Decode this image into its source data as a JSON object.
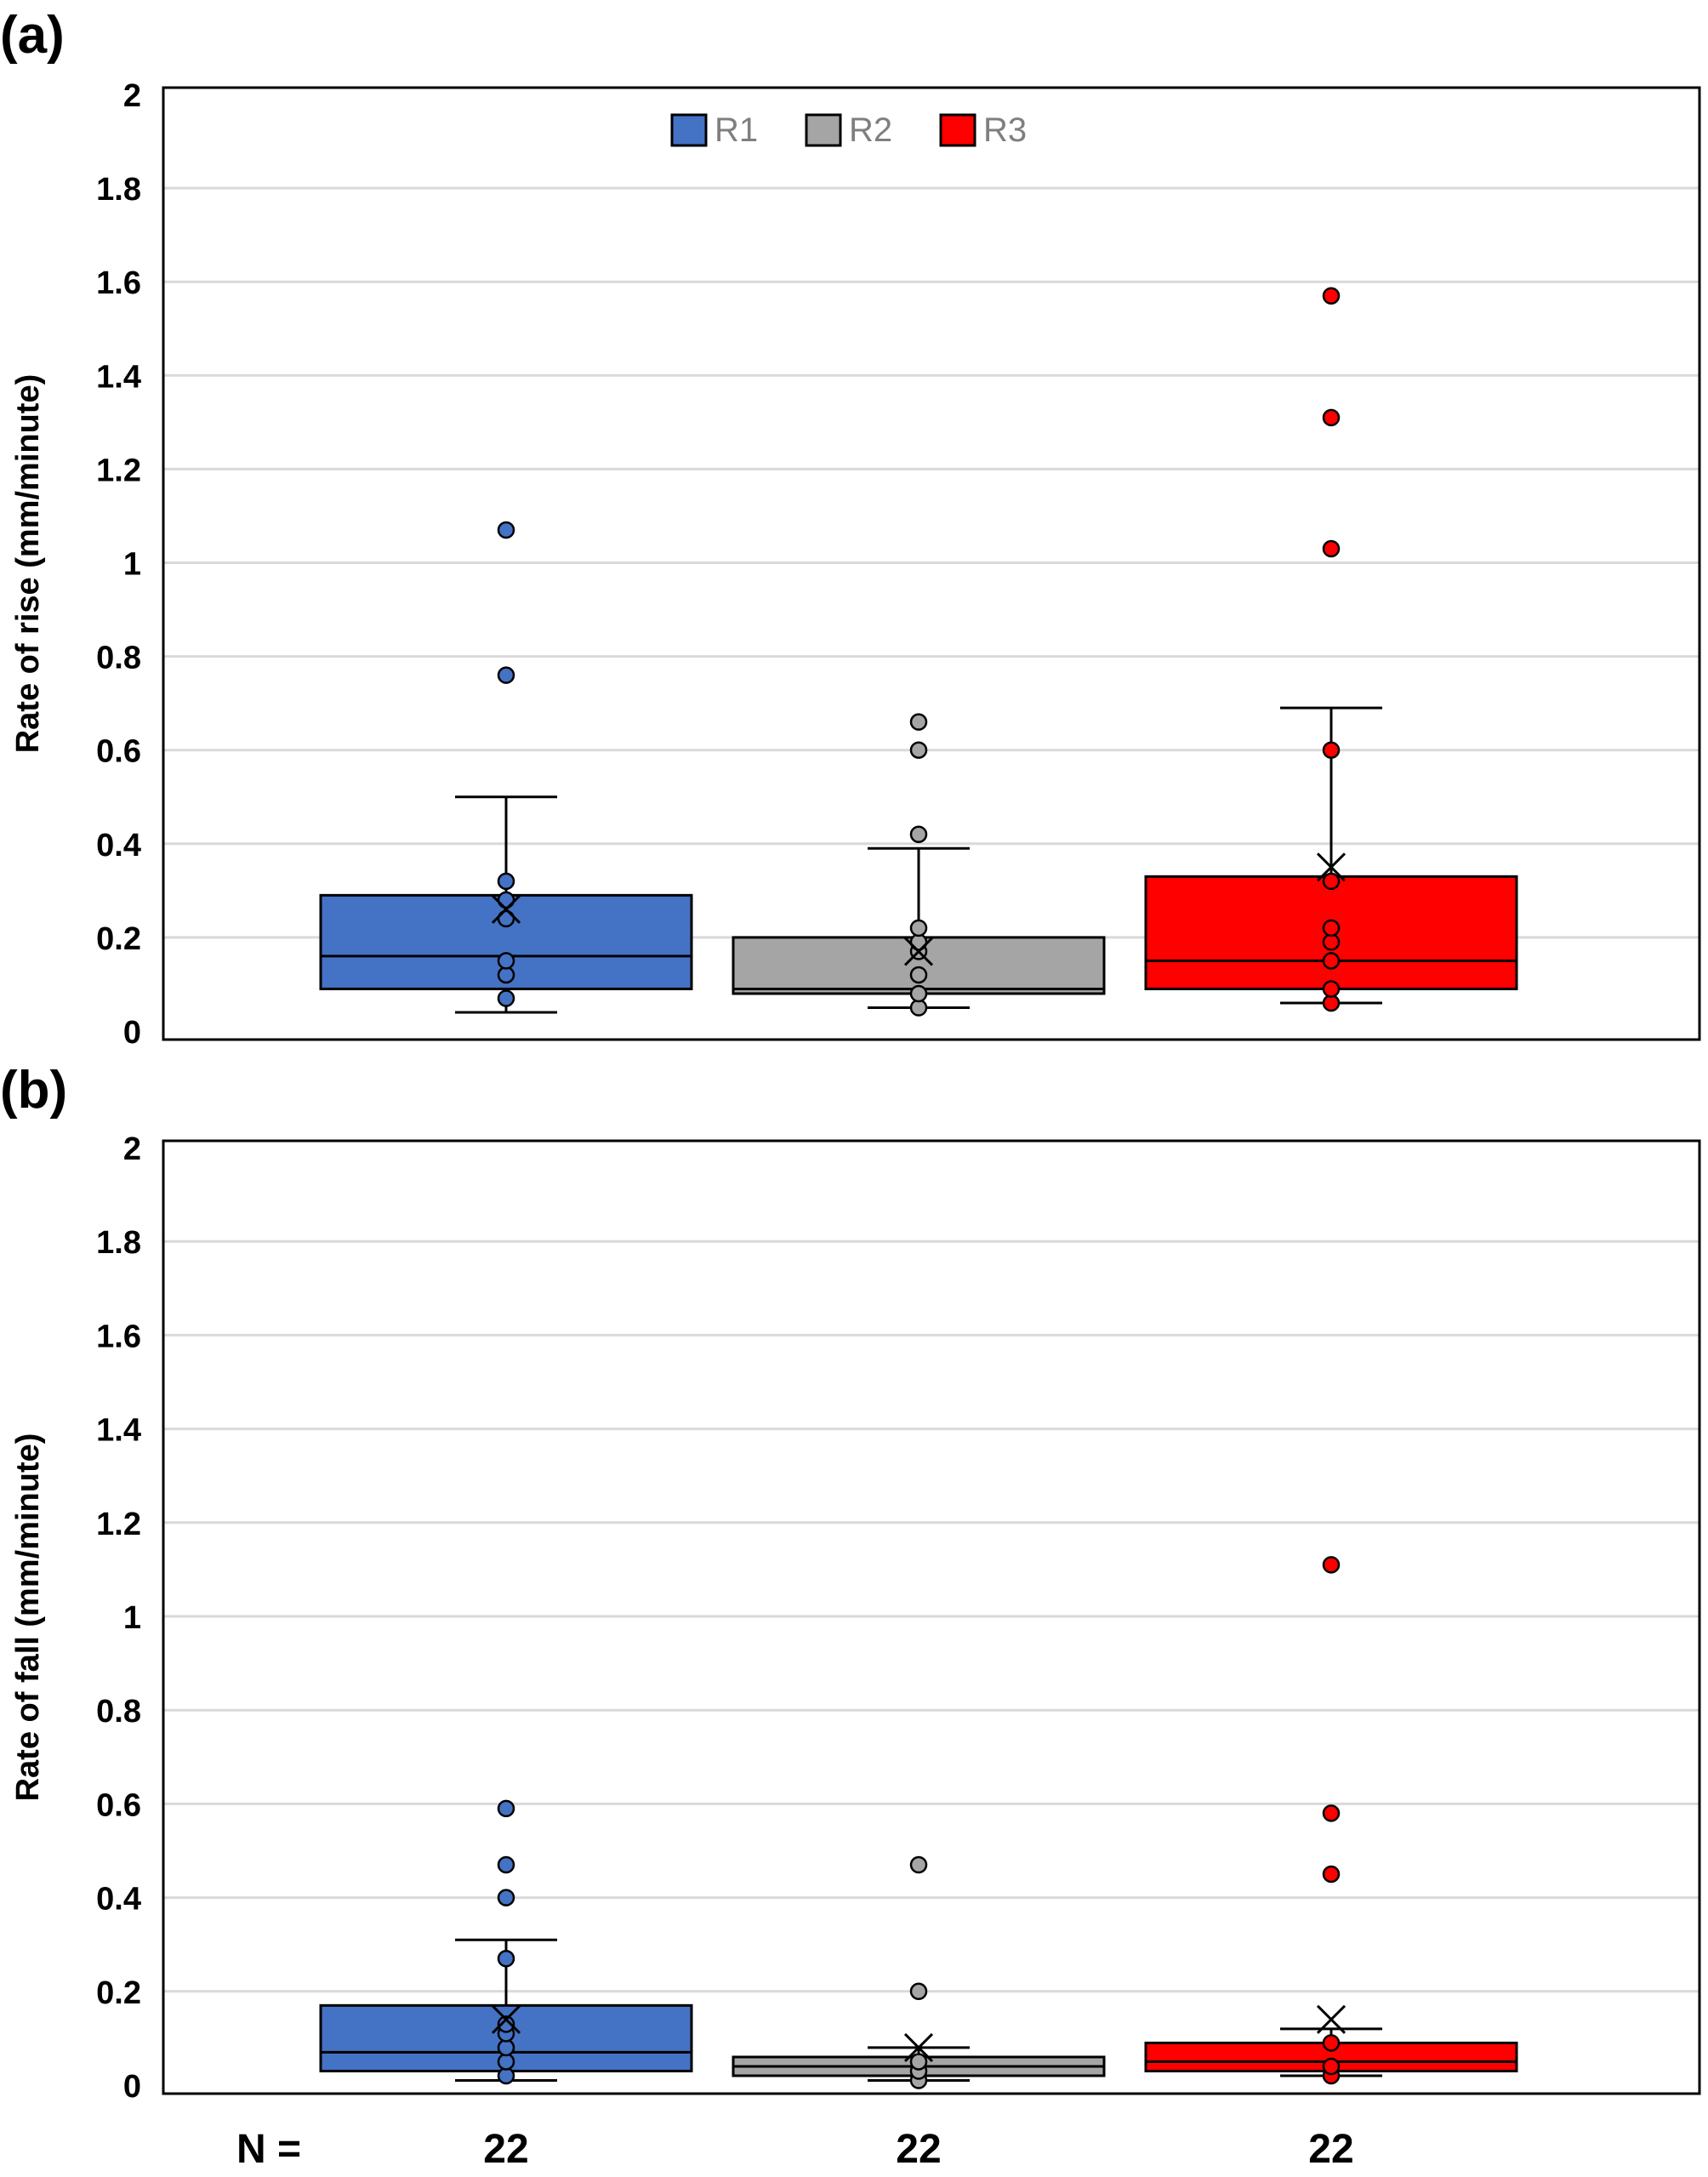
{
  "legend": [
    {
      "name": "R1",
      "color": "#4472C4"
    },
    {
      "name": "R2",
      "color": "#A5A5A5"
    },
    {
      "name": "R3",
      "color": "#FF0000"
    }
  ],
  "n_label": "N =",
  "n_values": [
    "22",
    "22",
    "22"
  ],
  "chart_data": [
    {
      "type": "box",
      "panel_label": "(a)",
      "ylabel": "Rate of rise (mm/minute)",
      "ylim": [
        0,
        2
      ],
      "yticks": [
        "0",
        "0.2",
        "0.4",
        "0.6",
        "0.8",
        "1",
        "1.2",
        "1.4",
        "1.6",
        "1.8",
        "2"
      ],
      "grid": true,
      "legend_position": "top-center",
      "series": [
        {
          "name": "R1",
          "color": "#4472C4",
          "min": 0.04,
          "q1": 0.09,
          "median": 0.16,
          "q3": 0.29,
          "max": 0.5,
          "mean": 0.26,
          "points": [
            0.07,
            0.12,
            0.15,
            0.24,
            0.28,
            0.32,
            0.76,
            1.07
          ]
        },
        {
          "name": "R2",
          "color": "#A5A5A5",
          "min": 0.05,
          "q1": 0.08,
          "median": 0.09,
          "q3": 0.2,
          "max": 0.39,
          "mean": 0.17,
          "points": [
            0.05,
            0.08,
            0.12,
            0.17,
            0.19,
            0.22,
            0.42,
            0.6,
            0.66
          ]
        },
        {
          "name": "R3",
          "color": "#FF0000",
          "min": 0.06,
          "q1": 0.09,
          "median": 0.15,
          "q3": 0.33,
          "max": 0.69,
          "mean": 0.35,
          "points": [
            0.06,
            0.09,
            0.15,
            0.19,
            0.22,
            0.32,
            0.6,
            1.03,
            1.31,
            1.57
          ]
        }
      ]
    },
    {
      "type": "box",
      "panel_label": "(b)",
      "ylabel": "Rate of fall (mm/minute)",
      "ylim": [
        0,
        2
      ],
      "yticks": [
        "0",
        "0.2",
        "0.4",
        "0.6",
        "0.8",
        "1",
        "1.2",
        "1.4",
        "1.6",
        "1.8",
        "2"
      ],
      "grid": true,
      "series": [
        {
          "name": "R1",
          "color": "#4472C4",
          "min": 0.01,
          "q1": 0.03,
          "median": 0.07,
          "q3": 0.17,
          "max": 0.31,
          "mean": 0.14,
          "points": [
            0.02,
            0.05,
            0.08,
            0.11,
            0.13,
            0.27,
            0.4,
            0.47,
            0.59
          ]
        },
        {
          "name": "R2",
          "color": "#A5A5A5",
          "min": 0.01,
          "q1": 0.02,
          "median": 0.04,
          "q3": 0.06,
          "max": 0.08,
          "mean": 0.08,
          "points": [
            0.01,
            0.03,
            0.05,
            0.2,
            0.47
          ]
        },
        {
          "name": "R3",
          "color": "#FF0000",
          "min": 0.02,
          "q1": 0.03,
          "median": 0.05,
          "q3": 0.09,
          "max": 0.12,
          "mean": 0.14,
          "points": [
            0.02,
            0.04,
            0.09,
            0.45,
            0.58,
            1.11
          ]
        }
      ]
    }
  ]
}
